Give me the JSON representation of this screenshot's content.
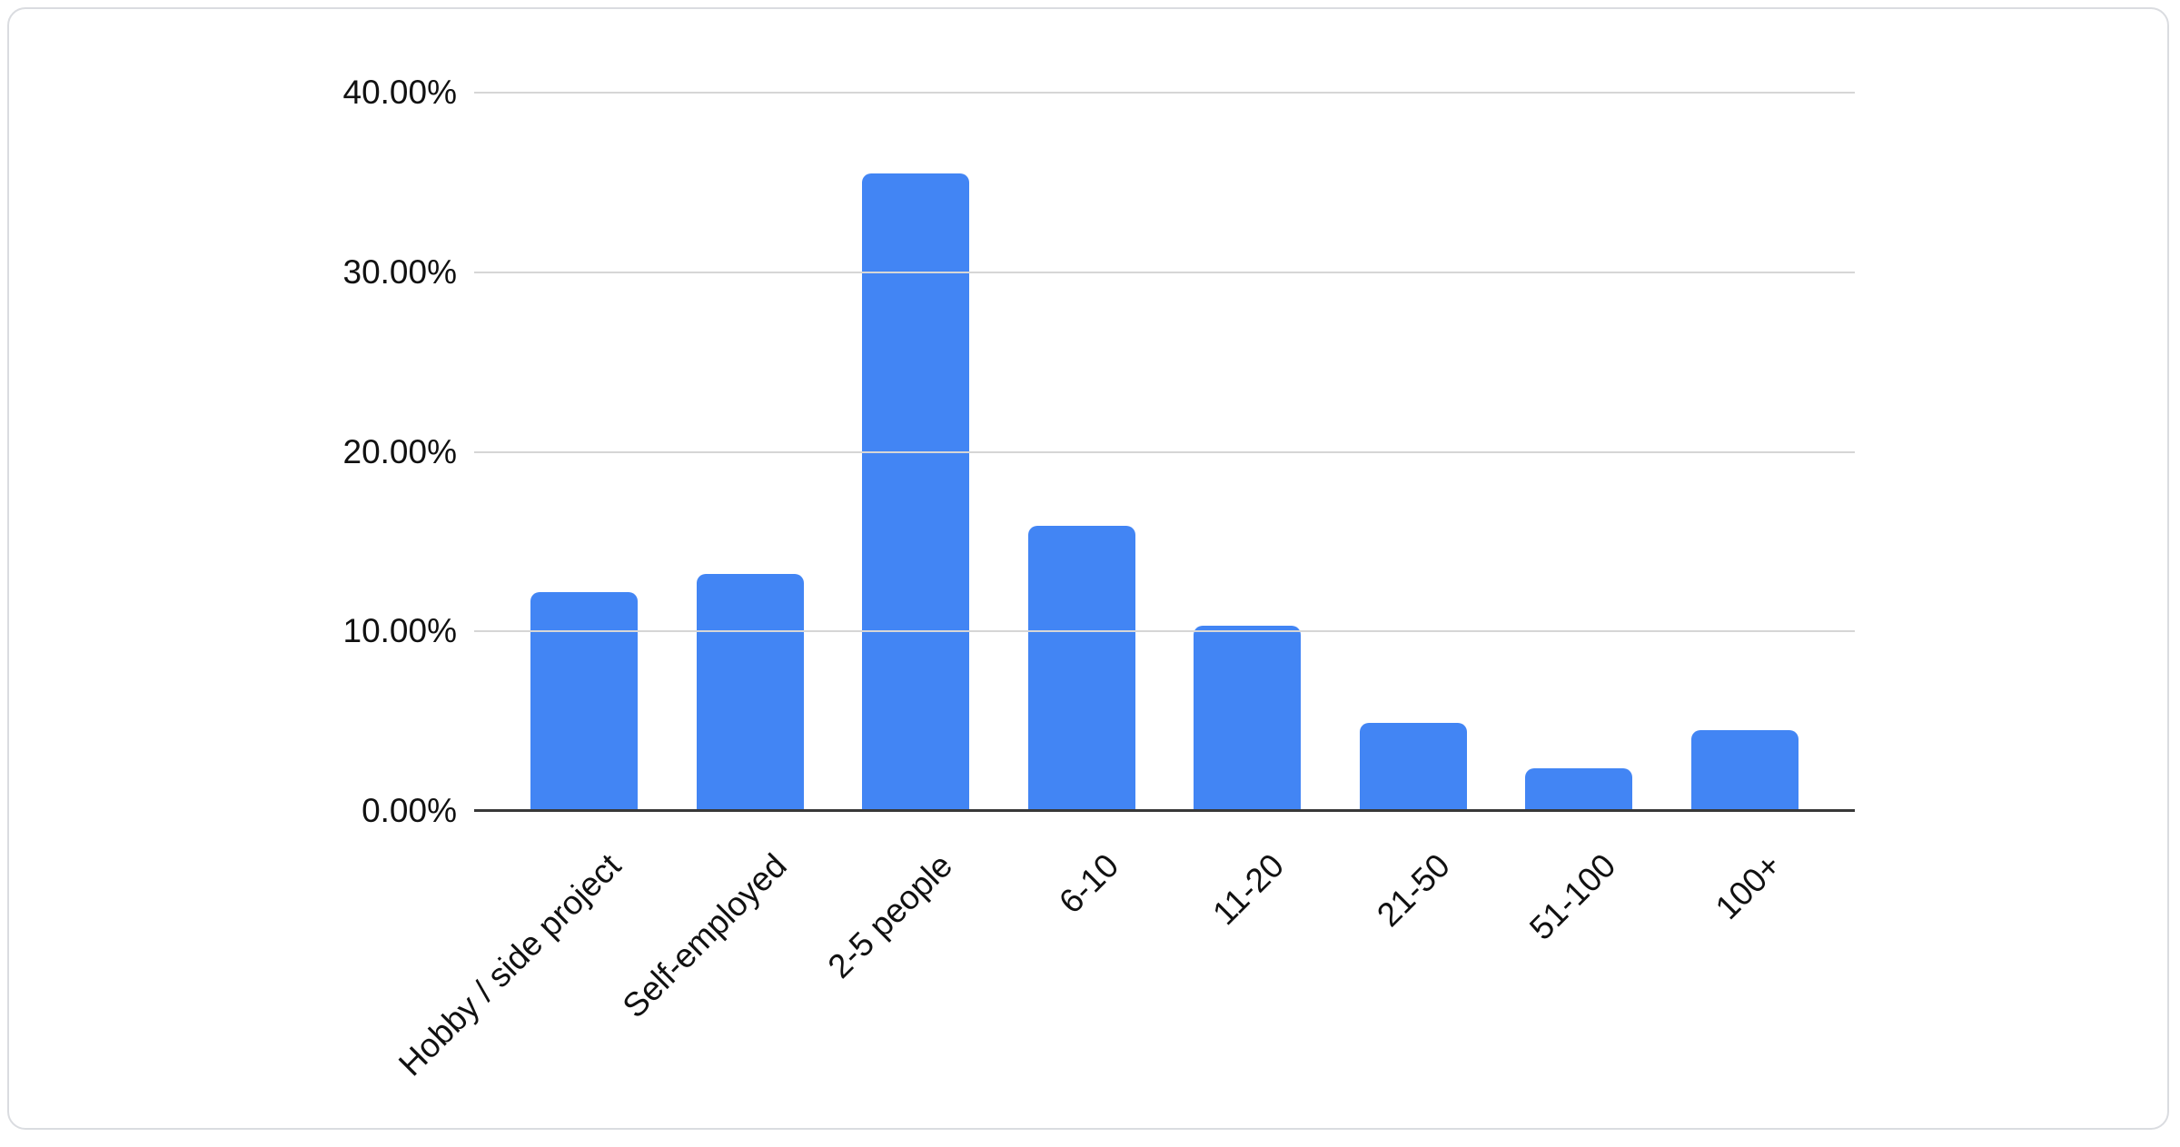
{
  "card": {
    "background": "#ffffff",
    "border_color": "#dadce0"
  },
  "chart_data": {
    "type": "bar",
    "title": "",
    "xlabel": "",
    "ylabel": "",
    "categories": [
      "Hobby / side project",
      "Self-employed",
      "2-5 people",
      "6-10",
      "11-20",
      "21-50",
      "51-100",
      "100+"
    ],
    "values": [
      12.2,
      13.2,
      35.5,
      15.9,
      10.3,
      4.9,
      2.4,
      4.5
    ],
    "value_unit": "percent",
    "ylim": [
      0,
      40
    ],
    "ytick_values": [
      0,
      10,
      20,
      30,
      40
    ],
    "ytick_labels": [
      "0.00%",
      "10.00%",
      "20.00%",
      "30.00%",
      "40.00%"
    ],
    "grid": true,
    "legend_position": "none",
    "x_labels_rotation_deg": -45,
    "bar_color": "#4285f4",
    "gridline_color": "#d6d6d6",
    "axis_line_color": "#383838",
    "tick_label_color": "#111111"
  }
}
